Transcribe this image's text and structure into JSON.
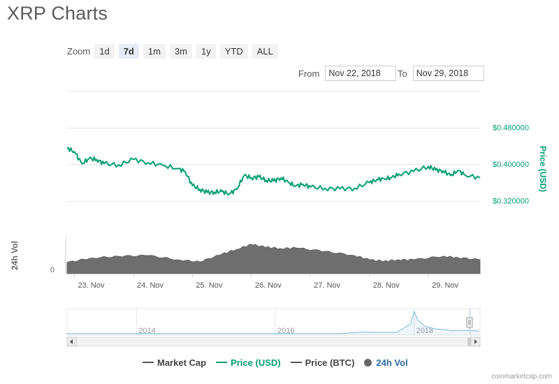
{
  "title": "XRP Charts",
  "zoom": {
    "label": "Zoom",
    "buttons": [
      "1d",
      "7d",
      "1m",
      "3m",
      "1y",
      "YTD",
      "ALL"
    ],
    "active": "7d"
  },
  "range": {
    "from_label": "From",
    "from_value": "Nov 22, 2018",
    "to_label": "To",
    "to_value": "Nov 29, 2018"
  },
  "legend": [
    {
      "label": "Market Cap",
      "color": "#555555",
      "type": "line"
    },
    {
      "label": "Price (USD)",
      "color": "#009e73",
      "type": "line"
    },
    {
      "label": "Price (BTC)",
      "color": "#555555",
      "type": "line"
    },
    {
      "label": "24h Vol",
      "color": "#666666",
      "type": "dot"
    }
  ],
  "credits": "coinmarketcap.com",
  "colors": {
    "price": "#009e73",
    "volume": "#6e6e6e",
    "navigator": "#7ab8dc"
  },
  "chart_data": [
    {
      "type": "line",
      "title": "",
      "ylabel": "Price (USD)",
      "ylim": [
        0.24,
        0.56
      ],
      "yticks": [
        0.32,
        0.4,
        0.48
      ],
      "ytick_labels": [
        "$0.320000",
        "$0.400000",
        "$0.480000"
      ],
      "xlim": [
        "2018-11-22T21:00",
        "2018-11-29T21:00"
      ],
      "xticks": [
        "2018-11-23",
        "2018-11-24",
        "2018-11-25",
        "2018-11-26",
        "2018-11-27",
        "2018-11-28",
        "2018-11-29"
      ],
      "xtick_labels": [
        "23. Nov",
        "24. Nov",
        "25. Nov",
        "26. Nov",
        "27. Nov",
        "28. Nov",
        "29. Nov"
      ],
      "grid": true,
      "series": [
        {
          "name": "Price (USD)",
          "x": [
            "2018-11-22T21:00",
            "2018-11-23T00:00",
            "2018-11-23T03:00",
            "2018-11-23T06:00",
            "2018-11-23T09:00",
            "2018-11-23T12:00",
            "2018-11-23T18:00",
            "2018-11-24T00:00",
            "2018-11-24T06:00",
            "2018-11-24T12:00",
            "2018-11-24T18:00",
            "2018-11-24T21:00",
            "2018-11-25T00:00",
            "2018-11-25T03:00",
            "2018-11-25T06:00",
            "2018-11-25T09:00",
            "2018-11-25T12:00",
            "2018-11-25T15:00",
            "2018-11-25T18:00",
            "2018-11-25T21:00",
            "2018-11-26T00:00",
            "2018-11-26T03:00",
            "2018-11-26T06:00",
            "2018-11-26T09:00",
            "2018-11-26T12:00",
            "2018-11-26T15:00",
            "2018-11-26T18:00",
            "2018-11-26T21:00",
            "2018-11-27T00:00",
            "2018-11-27T06:00",
            "2018-11-27T12:00",
            "2018-11-27T18:00",
            "2018-11-28T00:00",
            "2018-11-28T03:00",
            "2018-11-28T06:00",
            "2018-11-28T09:00",
            "2018-11-28T12:00",
            "2018-11-28T18:00",
            "2018-11-29T00:00",
            "2018-11-29T03:00",
            "2018-11-29T06:00",
            "2018-11-29T09:00",
            "2018-11-29T12:00",
            "2018-11-29T15:00",
            "2018-11-29T21:00"
          ],
          "y": [
            0.435,
            0.427,
            0.401,
            0.412,
            0.41,
            0.401,
            0.398,
            0.41,
            0.403,
            0.397,
            0.39,
            0.384,
            0.353,
            0.345,
            0.338,
            0.339,
            0.34,
            0.335,
            0.345,
            0.375,
            0.37,
            0.372,
            0.365,
            0.363,
            0.37,
            0.36,
            0.352,
            0.356,
            0.35,
            0.347,
            0.346,
            0.347,
            0.36,
            0.366,
            0.368,
            0.37,
            0.378,
            0.384,
            0.395,
            0.387,
            0.385,
            0.375,
            0.386,
            0.376,
            0.37
          ]
        }
      ]
    },
    {
      "type": "area",
      "title": "",
      "ylabel": "24h Vol",
      "ytick_labels": [
        "0"
      ],
      "series": [
        {
          "name": "24h Vol",
          "x": [
            "2018-11-22T21:00",
            "2018-11-23T06:00",
            "2018-11-23T18:00",
            "2018-11-24T06:00",
            "2018-11-24T18:00",
            "2018-11-25T03:00",
            "2018-11-25T12:00",
            "2018-11-25T18:00",
            "2018-11-26T00:00",
            "2018-11-26T06:00",
            "2018-11-26T12:00",
            "2018-11-26T18:00",
            "2018-11-27T06:00",
            "2018-11-27T18:00",
            "2018-11-28T00:00",
            "2018-11-28T06:00",
            "2018-11-28T12:00",
            "2018-11-28T18:00",
            "2018-11-29T06:00",
            "2018-11-29T12:00",
            "2018-11-29T21:00"
          ],
          "y": [
            0.32,
            0.44,
            0.5,
            0.52,
            0.4,
            0.34,
            0.56,
            0.7,
            0.84,
            0.76,
            0.72,
            0.74,
            0.64,
            0.52,
            0.4,
            0.36,
            0.4,
            0.4,
            0.5,
            0.46,
            0.4
          ]
        }
      ]
    },
    {
      "type": "line",
      "title": "",
      "xtick_labels": [
        "2014",
        "2016",
        "2018"
      ],
      "xlim": [
        2013.0,
        2018.95
      ],
      "series": [
        {
          "name": "Price (USD)",
          "x": [
            2013.0,
            2014.0,
            2015.0,
            2016.0,
            2016.9,
            2017.3,
            2017.4,
            2017.75,
            2017.95,
            2018.0,
            2018.05,
            2018.15,
            2018.3,
            2018.55,
            2018.8,
            2018.9,
            2018.93
          ],
          "y": [
            0.005,
            0.01,
            0.01,
            0.006,
            0.007,
            0.25,
            0.2,
            0.2,
            1.4,
            3.2,
            2.0,
            1.1,
            0.7,
            0.45,
            0.5,
            0.38,
            0.37
          ]
        }
      ]
    }
  ]
}
